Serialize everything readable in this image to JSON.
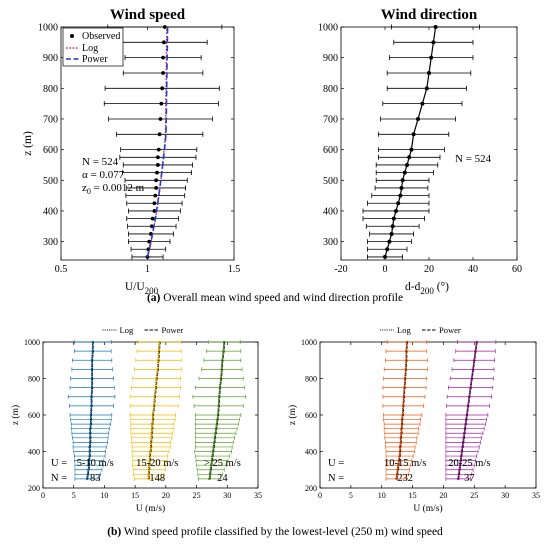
{
  "captions": {
    "a_letter": "(a)",
    "a_text": " Overall mean wind speed and wind direction profile",
    "b_letter": "(b)",
    "b_text": " Wind speed profile classified by the lowest-level (250 m) wind speed"
  },
  "colors": {
    "observed": "#000000",
    "log": "#e41a1c",
    "power": "#1f3fd6",
    "group_5_10": "#1f77b4",
    "group_15_20": "#f5b800",
    "group_gt25": "#5aa02c",
    "group_10_15": "#f05a14",
    "group_20_25": "#a020a0"
  },
  "chart_data": [
    {
      "type": "line",
      "title": "Wind speed",
      "xlabel": "U/U",
      "xlabel_sub": "200",
      "ylabel": "z (m)",
      "xlim": [
        0.5,
        1.5
      ],
      "ylim": [
        240,
        1000
      ],
      "xticks": [
        0.5,
        1,
        1.5
      ],
      "xtick_labels": [
        "0.5",
        "1",
        "1.5"
      ],
      "yticks": [
        300,
        400,
        500,
        600,
        700,
        800,
        900,
        1000
      ],
      "ytick_labels": [
        "300",
        "400",
        "500",
        "600",
        "700",
        "800",
        "900",
        "1000"
      ],
      "legend": {
        "position": "top-left",
        "entries": [
          "Observed",
          "Log",
          "Power"
        ]
      },
      "annotations": [
        "N = 524",
        "α = 0.077",
        "z",
        "0",
        " = 0.0012 m"
      ],
      "z": [
        250,
        275,
        300,
        325,
        350,
        375,
        400,
        425,
        450,
        475,
        500,
        525,
        550,
        575,
        600,
        650,
        700,
        750,
        800,
        850,
        900,
        950,
        1000
      ],
      "series": [
        {
          "name": "Observed",
          "style": "points-with-errorbars",
          "mean": [
            1.0,
            1.005,
            1.01,
            1.02,
            1.025,
            1.03,
            1.04,
            1.04,
            1.045,
            1.05,
            1.05,
            1.055,
            1.06,
            1.06,
            1.065,
            1.07,
            1.075,
            1.08,
            1.085,
            1.09,
            1.09,
            1.095,
            1.1
          ],
          "error": [
            0.09,
            0.1,
            0.12,
            0.13,
            0.14,
            0.15,
            0.15,
            0.16,
            0.17,
            0.17,
            0.18,
            0.2,
            0.2,
            0.22,
            0.22,
            0.25,
            0.3,
            0.33,
            0.33,
            0.23,
            0.22,
            0.25,
            0.33
          ]
        },
        {
          "name": "Log",
          "style": "dotted",
          "x": [
            1.0,
            1.011,
            1.021,
            1.03,
            1.038,
            1.046,
            1.053,
            1.06,
            1.066,
            1.072,
            1.077,
            1.087,
            1.096,
            1.104,
            1.111
          ],
          "z": [
            250,
            275,
            300,
            325,
            350,
            375,
            400,
            425,
            450,
            475,
            500,
            550,
            600,
            650,
            1000
          ]
        },
        {
          "name": "Power",
          "style": "dashed",
          "x": [
            1.0,
            1.01,
            1.02,
            1.029,
            1.037,
            1.045,
            1.052,
            1.059,
            1.065,
            1.071,
            1.077,
            1.088,
            1.098,
            1.107,
            1.116
          ],
          "z": [
            250,
            275,
            300,
            325,
            350,
            375,
            400,
            425,
            450,
            475,
            500,
            550,
            600,
            650,
            1000
          ]
        }
      ]
    },
    {
      "type": "line",
      "title": "Wind direction",
      "xlabel": "d-d",
      "xlabel_sub": "200",
      "xlabel_unit": " (°)",
      "ylim": [
        240,
        1000
      ],
      "xlim": [
        -20,
        60
      ],
      "xticks": [
        -20,
        0,
        20,
        40,
        60
      ],
      "xtick_labels": [
        "-20",
        "0",
        "20",
        "40",
        "60"
      ],
      "yticks": [
        300,
        400,
        500,
        600,
        700,
        800,
        900,
        1000
      ],
      "ytick_labels": [
        "300",
        "400",
        "500",
        "600",
        "700",
        "800",
        "900",
        "1000"
      ],
      "annotations": [
        "N = 524"
      ],
      "z": [
        250,
        275,
        300,
        325,
        350,
        375,
        400,
        425,
        450,
        475,
        500,
        525,
        550,
        575,
        600,
        650,
        700,
        750,
        800,
        850,
        900,
        950,
        1000
      ],
      "series": [
        {
          "style": "points-with-errorbars-line",
          "mean": [
            0,
            1,
            2,
            3,
            3.5,
            4,
            5,
            6,
            7,
            7.5,
            8,
            9,
            10,
            11,
            12,
            13,
            15,
            17,
            19,
            20,
            21,
            22,
            23
          ],
          "error": [
            8,
            9,
            10,
            10,
            12,
            14,
            15,
            14,
            13,
            12,
            12,
            13,
            14,
            14,
            15,
            16,
            17,
            18,
            18,
            19,
            19,
            18,
            20
          ]
        }
      ]
    },
    {
      "type": "line",
      "xlabel": "U (m/s)",
      "ylabel": "z (m)",
      "xlim": [
        0,
        35
      ],
      "ylim": [
        200,
        1000
      ],
      "xticks": [
        0,
        5,
        10,
        15,
        20,
        25,
        30,
        35
      ],
      "xtick_labels": [
        "0",
        "5",
        "10",
        "15",
        "20",
        "25",
        "30",
        "35"
      ],
      "yticks": [
        200,
        400,
        600,
        800,
        1000
      ],
      "ytick_labels": [
        "200",
        "400",
        "600",
        "800",
        "1000"
      ],
      "legend": {
        "position": "top",
        "entries": [
          "Log",
          "Power"
        ]
      },
      "row_labels": [
        "U =",
        "N ="
      ],
      "z": [
        250,
        275,
        300,
        325,
        350,
        375,
        400,
        425,
        450,
        475,
        500,
        525,
        550,
        575,
        600,
        650,
        700,
        750,
        800,
        850,
        900,
        950,
        1000
      ],
      "groups": [
        {
          "range": "5-10 m/s",
          "count": "83",
          "color_key": "group_5_10",
          "mean": [
            7.2,
            7.3,
            7.4,
            7.5,
            7.5,
            7.6,
            7.6,
            7.6,
            7.7,
            7.7,
            7.7,
            7.7,
            7.8,
            7.8,
            7.8,
            7.9,
            7.9,
            8.0,
            8.0,
            8.0,
            8.0,
            8.1,
            8.1
          ],
          "error": [
            2.0,
            2.1,
            2.2,
            2.3,
            2.4,
            2.5,
            2.6,
            2.7,
            2.8,
            2.9,
            3.0,
            3.1,
            3.2,
            3.3,
            3.4,
            3.6,
            3.8,
            3.6,
            3.5,
            3.3,
            3.2,
            3.0,
            3.0
          ]
        },
        {
          "range": "15-20 m/s",
          "count": "148",
          "color_key": "group_15_20",
          "mean": [
            17.2,
            17.2,
            17.3,
            17.3,
            17.4,
            17.4,
            17.5,
            17.6,
            17.6,
            17.7,
            17.7,
            17.8,
            17.8,
            17.9,
            17.9,
            18.1,
            18.2,
            18.4,
            18.5,
            18.7,
            18.8,
            18.9,
            19.0
          ],
          "error": [
            2.3,
            2.5,
            2.6,
            2.7,
            2.8,
            2.9,
            3.0,
            3.1,
            3.2,
            3.3,
            3.4,
            3.5,
            3.5,
            3.6,
            3.7,
            3.9,
            4.0,
            4.0,
            3.9,
            3.8,
            3.7,
            3.6,
            3.5
          ]
        },
        {
          "range": "> 25 m/s",
          "count": "24",
          "color_key": "group_gt25",
          "mean": [
            27.1,
            27.2,
            27.3,
            27.4,
            27.5,
            27.6,
            27.7,
            27.8,
            27.9,
            28.0,
            28.1,
            28.2,
            28.3,
            28.4,
            28.5,
            28.6,
            28.7,
            28.8,
            29.0,
            29.1,
            29.2,
            29.4,
            29.5
          ],
          "error": [
            1.8,
            2.0,
            2.2,
            2.4,
            2.6,
            2.8,
            3.0,
            3.0,
            3.1,
            3.2,
            3.3,
            3.4,
            3.5,
            3.6,
            3.7,
            4.0,
            4.3,
            4.0,
            3.6,
            3.3,
            3.0,
            2.8,
            2.6
          ]
        }
      ]
    },
    {
      "type": "line",
      "xlabel": "U (m/s)",
      "ylabel": "z (m)",
      "xlim": [
        0,
        35
      ],
      "ylim": [
        200,
        1000
      ],
      "xticks": [
        0,
        5,
        10,
        15,
        20,
        25,
        30,
        35
      ],
      "xtick_labels": [
        "0",
        "5",
        "10",
        "15",
        "20",
        "25",
        "30",
        "35"
      ],
      "yticks": [
        200,
        400,
        600,
        800,
        1000
      ],
      "ytick_labels": [
        "200",
        "400",
        "600",
        "800",
        "1000"
      ],
      "legend": {
        "position": "top",
        "entries": [
          "Log",
          "Power"
        ]
      },
      "row_labels": [
        "U =",
        "N ="
      ],
      "z": [
        250,
        275,
        300,
        325,
        350,
        375,
        400,
        425,
        450,
        475,
        500,
        525,
        550,
        575,
        600,
        650,
        700,
        750,
        800,
        850,
        900,
        950,
        1000
      ],
      "groups": [
        {
          "range": "10-15 m/s",
          "count": "232",
          "color_key": "group_10_15",
          "mean": [
            12.4,
            12.5,
            12.6,
            12.7,
            12.8,
            12.9,
            13.0,
            13.0,
            13.1,
            13.1,
            13.2,
            13.2,
            13.3,
            13.3,
            13.4,
            13.5,
            13.6,
            13.7,
            13.8,
            13.9,
            14.0,
            14.0,
            14.1
          ],
          "error": [
            1.7,
            1.8,
            1.9,
            2.0,
            2.1,
            2.2,
            2.3,
            2.4,
            2.5,
            2.6,
            2.7,
            2.8,
            2.9,
            3.0,
            3.1,
            3.3,
            3.4,
            3.5,
            3.5,
            3.5,
            3.4,
            3.3,
            3.2
          ]
        },
        {
          "range": "20-25 m/s",
          "count": "37",
          "color_key": "group_20_25",
          "mean": [
            22.4,
            22.5,
            22.6,
            22.7,
            22.8,
            22.9,
            23.0,
            23.1,
            23.2,
            23.3,
            23.4,
            23.5,
            23.6,
            23.7,
            23.8,
            24.0,
            24.2,
            24.4,
            24.6,
            24.8,
            25.0,
            25.2,
            25.4
          ],
          "error": [
            2.0,
            2.1,
            2.2,
            2.3,
            2.4,
            2.5,
            2.6,
            2.7,
            2.8,
            2.9,
            3.0,
            3.1,
            3.2,
            3.3,
            3.4,
            3.5,
            3.6,
            3.6,
            3.5,
            3.4,
            3.3,
            3.2,
            3.1
          ]
        }
      ]
    }
  ]
}
